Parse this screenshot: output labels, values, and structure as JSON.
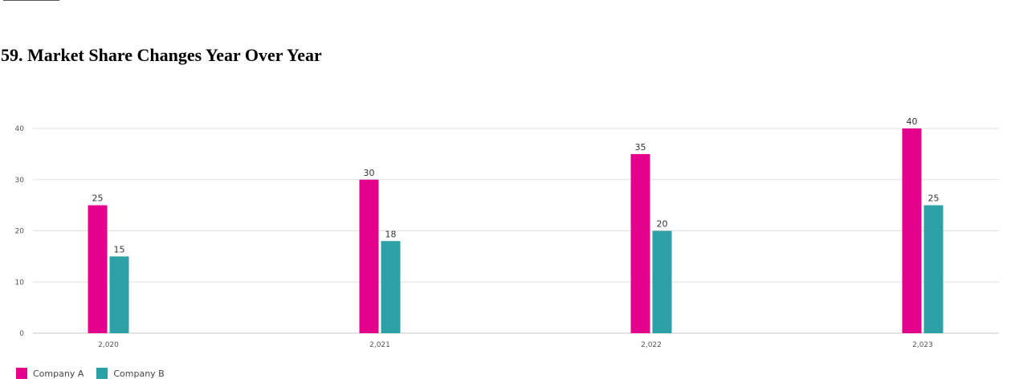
{
  "title": "59. Market Share Changes Year Over Year",
  "colors": {
    "company_a": "#e5008c",
    "company_b": "#2ca0a7",
    "grid": "#e0e0e0",
    "axis": "#c8c8c8",
    "tick_text": "#555555",
    "label_text": "#333333"
  },
  "chart_data": {
    "type": "bar",
    "categories": [
      "2,020",
      "2,021",
      "2,022",
      "2,023"
    ],
    "series": [
      {
        "name": "Company A",
        "values": [
          25,
          30,
          35,
          40
        ],
        "color": "#e5008c"
      },
      {
        "name": "Company B",
        "values": [
          15,
          18,
          20,
          25
        ],
        "color": "#2ca0a7"
      }
    ],
    "yticks": [
      "0",
      "10",
      "20",
      "30",
      "40"
    ],
    "ylim": [
      0,
      40
    ],
    "grid": true,
    "data_labels": true,
    "legend_position": "bottom-left",
    "xlabel": "",
    "ylabel": ""
  }
}
